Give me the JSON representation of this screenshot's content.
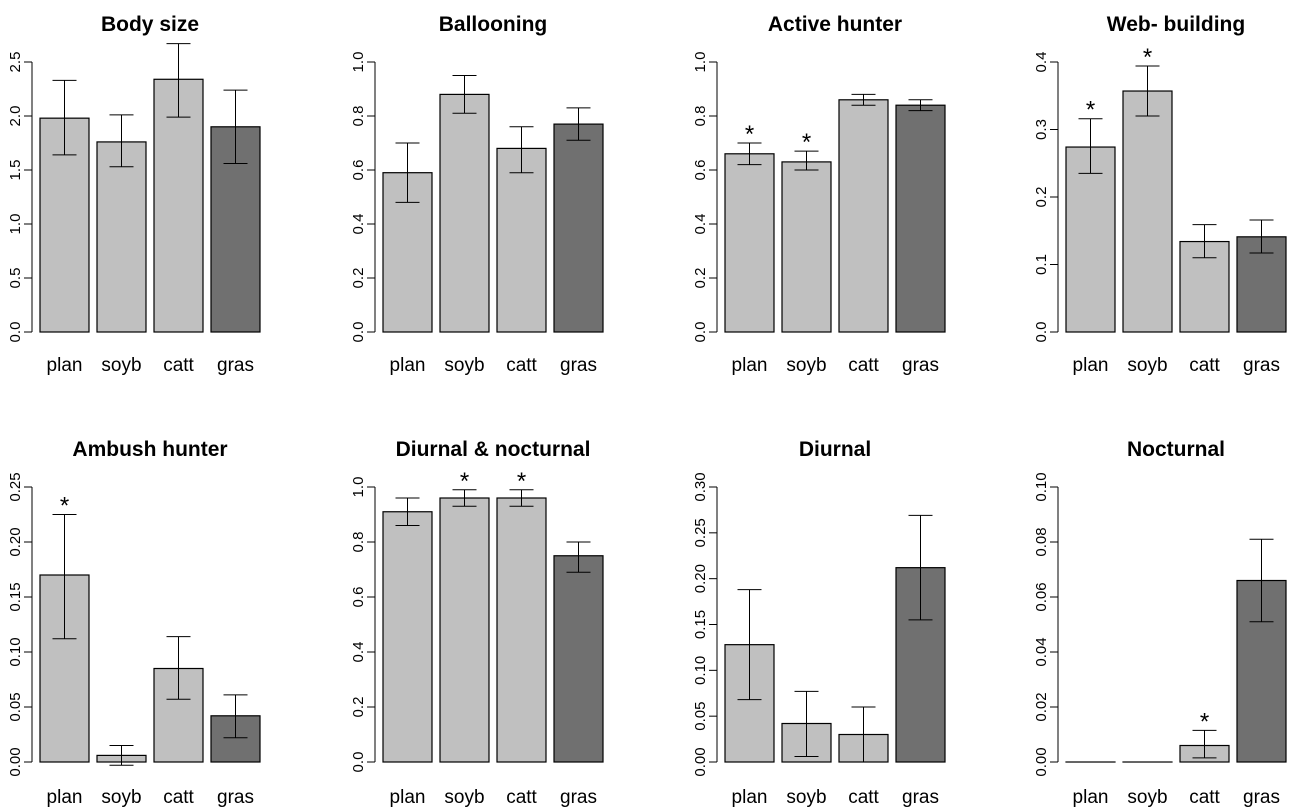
{
  "chart_data": [
    {
      "type": "bar",
      "title": "Body size",
      "categories": [
        "plan",
        "soyb",
        "catt",
        "gras"
      ],
      "values": [
        1.98,
        1.76,
        2.34,
        1.9
      ],
      "error_low": [
        1.64,
        1.53,
        1.99,
        1.56
      ],
      "error_high": [
        2.33,
        2.01,
        2.67,
        2.24
      ],
      "significant": [
        false,
        false,
        false,
        false
      ],
      "ylim": [
        0,
        2.5
      ],
      "yticks": [
        0.0,
        0.5,
        1.0,
        1.5,
        2.0,
        2.5
      ],
      "ytick_labels": [
        "0.0",
        "0.5",
        "1.0",
        "1.5",
        "2.0",
        "2.5"
      ],
      "bar_colors": [
        "#c0c0c0",
        "#c0c0c0",
        "#c0c0c0",
        "#707070"
      ]
    },
    {
      "type": "bar",
      "title": "Ballooning",
      "categories": [
        "plan",
        "soyb",
        "catt",
        "gras"
      ],
      "values": [
        0.59,
        0.88,
        0.68,
        0.77
      ],
      "error_low": [
        0.48,
        0.81,
        0.59,
        0.71
      ],
      "error_high": [
        0.7,
        0.95,
        0.76,
        0.83
      ],
      "significant": [
        false,
        false,
        false,
        false
      ],
      "ylim": [
        0,
        1.0
      ],
      "yticks": [
        0.0,
        0.2,
        0.4,
        0.6,
        0.8,
        1.0
      ],
      "ytick_labels": [
        "0.0",
        "0.2",
        "0.4",
        "0.6",
        "0.8",
        "1.0"
      ],
      "bar_colors": [
        "#c0c0c0",
        "#c0c0c0",
        "#c0c0c0",
        "#707070"
      ]
    },
    {
      "type": "bar",
      "title": "Active hunter",
      "categories": [
        "plan",
        "soyb",
        "catt",
        "gras"
      ],
      "values": [
        0.66,
        0.63,
        0.86,
        0.84
      ],
      "error_low": [
        0.62,
        0.6,
        0.84,
        0.82
      ],
      "error_high": [
        0.7,
        0.67,
        0.88,
        0.86
      ],
      "significant": [
        true,
        true,
        false,
        false
      ],
      "ylim": [
        0,
        1.0
      ],
      "yticks": [
        0.0,
        0.2,
        0.4,
        0.6,
        0.8,
        1.0
      ],
      "ytick_labels": [
        "0.0",
        "0.2",
        "0.4",
        "0.6",
        "0.8",
        "1.0"
      ],
      "bar_colors": [
        "#c0c0c0",
        "#c0c0c0",
        "#c0c0c0",
        "#707070"
      ]
    },
    {
      "type": "bar",
      "title": "Web- building",
      "categories": [
        "plan",
        "soyb",
        "catt",
        "gras"
      ],
      "values": [
        0.274,
        0.357,
        0.134,
        0.141
      ],
      "error_low": [
        0.235,
        0.32,
        0.11,
        0.117
      ],
      "error_high": [
        0.316,
        0.394,
        0.159,
        0.166
      ],
      "significant": [
        true,
        true,
        false,
        false
      ],
      "ylim": [
        0,
        0.4
      ],
      "yticks": [
        0.0,
        0.1,
        0.2,
        0.3,
        0.4
      ],
      "ytick_labels": [
        "0.0",
        "0.1",
        "0.2",
        "0.3",
        "0.4"
      ],
      "bar_colors": [
        "#c0c0c0",
        "#c0c0c0",
        "#c0c0c0",
        "#707070"
      ]
    },
    {
      "type": "bar",
      "title": "Ambush hunter",
      "categories": [
        "plan",
        "soyb",
        "catt",
        "gras"
      ],
      "values": [
        0.17,
        0.006,
        0.085,
        0.042
      ],
      "error_low": [
        0.112,
        -0.003,
        0.057,
        0.022
      ],
      "error_high": [
        0.225,
        0.015,
        0.114,
        0.061
      ],
      "significant": [
        true,
        false,
        false,
        false
      ],
      "ylim": [
        0,
        0.25
      ],
      "yticks": [
        0.0,
        0.05,
        0.1,
        0.15,
        0.2,
        0.25
      ],
      "ytick_labels": [
        "0.00",
        "0.05",
        "0.10",
        "0.15",
        "0.20",
        "0.25"
      ],
      "bar_colors": [
        "#c0c0c0",
        "#c0c0c0",
        "#c0c0c0",
        "#707070"
      ]
    },
    {
      "type": "bar",
      "title": "Diurnal & nocturnal",
      "categories": [
        "plan",
        "soyb",
        "catt",
        "gras"
      ],
      "values": [
        0.91,
        0.96,
        0.96,
        0.75
      ],
      "error_low": [
        0.86,
        0.93,
        0.93,
        0.69
      ],
      "error_high": [
        0.96,
        0.99,
        0.99,
        0.8
      ],
      "significant": [
        false,
        true,
        true,
        false
      ],
      "ylim": [
        0,
        1.0
      ],
      "yticks": [
        0.0,
        0.2,
        0.4,
        0.6,
        0.8,
        1.0
      ],
      "ytick_labels": [
        "0.0",
        "0.2",
        "0.4",
        "0.6",
        "0.8",
        "1.0"
      ],
      "bar_colors": [
        "#c0c0c0",
        "#c0c0c0",
        "#c0c0c0",
        "#707070"
      ]
    },
    {
      "type": "bar",
      "title": "Diurnal",
      "categories": [
        "plan",
        "soyb",
        "catt",
        "gras"
      ],
      "values": [
        0.128,
        0.042,
        0.03,
        0.212
      ],
      "error_low": [
        0.068,
        0.006,
        0.0,
        0.155
      ],
      "error_high": [
        0.188,
        0.077,
        0.06,
        0.269
      ],
      "significant": [
        false,
        false,
        false,
        false
      ],
      "ylim": [
        0,
        0.3
      ],
      "yticks": [
        0.0,
        0.05,
        0.1,
        0.15,
        0.2,
        0.25,
        0.3
      ],
      "ytick_labels": [
        "0.00",
        "0.05",
        "0.10",
        "0.15",
        "0.20",
        "0.25",
        "0.30"
      ],
      "bar_colors": [
        "#c0c0c0",
        "#c0c0c0",
        "#c0c0c0",
        "#707070"
      ]
    },
    {
      "type": "bar",
      "title": "Nocturnal",
      "categories": [
        "plan",
        "soyb",
        "catt",
        "gras"
      ],
      "values": [
        0.0,
        0.0,
        0.006,
        0.066
      ],
      "error_low": [
        0.0,
        0.0,
        0.0015,
        0.051
      ],
      "error_high": [
        0.0,
        0.0,
        0.0115,
        0.081
      ],
      "significant": [
        false,
        false,
        true,
        false
      ],
      "ylim": [
        0,
        0.1
      ],
      "yticks": [
        0.0,
        0.02,
        0.04,
        0.06,
        0.08,
        0.1
      ],
      "ytick_labels": [
        "0.00",
        "0.02",
        "0.04",
        "0.06",
        "0.08",
        "0.10"
      ],
      "bar_colors": [
        "#c0c0c0",
        "#c0c0c0",
        "#c0c0c0",
        "#707070"
      ]
    }
  ]
}
